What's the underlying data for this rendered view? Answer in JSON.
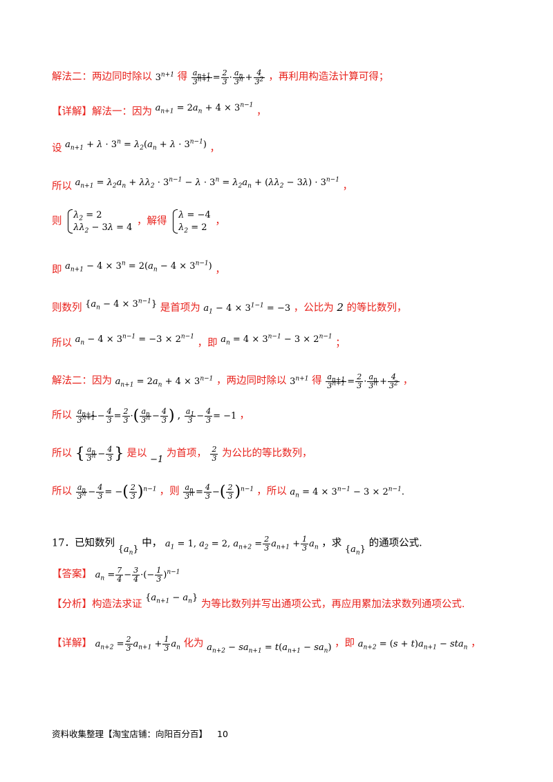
{
  "lines": {
    "l1_text": "解法二：两边同时除以",
    "l1_text2": "得",
    "l1_text3": "，再利用构造法计算可得；",
    "l2_label": "【详解】解法一：因为",
    "l2_end": "，",
    "l3_label": "设",
    "l3_end": "，",
    "l4_label": "所以",
    "l4_end": "，",
    "l5_label": "则",
    "l5_mid": "，解得",
    "l5_end": "，",
    "l6_label": "即",
    "l6_end": "，",
    "l7_label": "则数列",
    "l7_mid": "是首项为",
    "l7_mid2": "，公比为",
    "l7_ratio": "2",
    "l7_end": "的等比数列，",
    "l8_label": "所以",
    "l8_mid": "，即",
    "l8_end": "；",
    "l9_label": "解法二：因为",
    "l9_mid": "，两边同时除以",
    "l9_mid2": "得",
    "l9_end": "，",
    "l10_label": "所以",
    "l10_end": "，",
    "l11_label": "所以",
    "l11_mid": "是以",
    "l11_first": "−1",
    "l11_mid2": "为首项，",
    "l11_end": "为公比的等比数列，",
    "l12_label": "所以",
    "l12_mid": "，则",
    "l12_mid2": "，所以",
    "q17_num": "17．已知数列",
    "q17_mid": "中，",
    "q17_mid2": "，求",
    "q17_end": "的通项公式.",
    "ans_label": "【答案】",
    "ana_label": "【分析】构造法求证",
    "ana_end": "为等比数列并写出通项公式，再应用累加法求数列通项公式.",
    "det_label": "【详解】",
    "det_mid": "化为",
    "det_mid2": "，即",
    "det_end": "，"
  },
  "footer": {
    "text": "资料收集整理【淘宝店铺：向阳百分百】",
    "page": "10"
  },
  "colors": {
    "accent": "#e8221c"
  }
}
